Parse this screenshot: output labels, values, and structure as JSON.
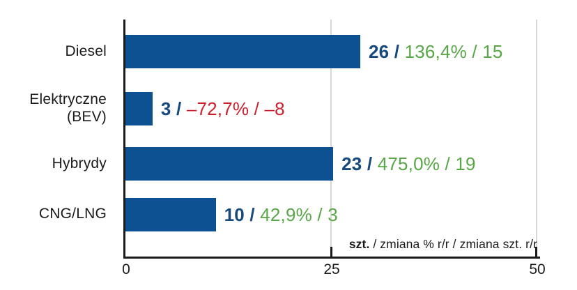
{
  "chart_data": {
    "type": "bar",
    "orientation": "horizontal",
    "title": "",
    "categories": [
      "Diesel",
      "Elektryczne (BEV)",
      "Hybrydy",
      "CNG/LNG"
    ],
    "series": [
      {
        "name": "szt.",
        "values": [
          26,
          3,
          23,
          10
        ]
      },
      {
        "name": "zmiana % r/r",
        "values": [
          "136,4%",
          "–72,7%",
          "475,0%",
          "42,9%"
        ]
      },
      {
        "name": "zmiana szt. r/r",
        "values": [
          15,
          -8,
          19,
          3
        ]
      }
    ],
    "xlim": [
      0,
      50
    ],
    "x_ticks": [
      "0",
      "25",
      "50"
    ],
    "gridlines_at": [
      25,
      50
    ],
    "legend_position": "none",
    "footnote": "szt. / zmiana % r/r / zmiana szt. r/r"
  },
  "rows": [
    {
      "label_line1": "Diesel",
      "value": 26,
      "value_label": "26 /",
      "change_label": "136,4% / 15",
      "change_color": "#58A747"
    },
    {
      "label_line1": "Elektryczne",
      "label_line2": "(BEV)",
      "value": 3,
      "value_label": "3 /",
      "change_label": "–72,7% / –8",
      "change_color": "#CE1F2D"
    },
    {
      "label_line1": "Hybrydy",
      "value": 23,
      "value_label": "23 /",
      "change_label": "475,0% / 19",
      "change_color": "#58A747"
    },
    {
      "label_line1": "CNG/LNG",
      "value": 10,
      "value_label": "10 /",
      "change_label": "42,9% / 3",
      "change_color": "#58A747"
    }
  ],
  "axis": {
    "max": 50,
    "ticks": [
      "0",
      "25",
      "50"
    ]
  },
  "footnote": {
    "bold": "szt.",
    "rest": " / zmiana % r/r / zmiana szt. r/r"
  },
  "colors": {
    "bar": "#0E5193",
    "value_text": "#17497D",
    "positive": "#58A747",
    "negative": "#CE1F2D",
    "axis": "#1A1A1A",
    "gridline": "#D8D8D8",
    "label_text": "#1A1A1A"
  }
}
